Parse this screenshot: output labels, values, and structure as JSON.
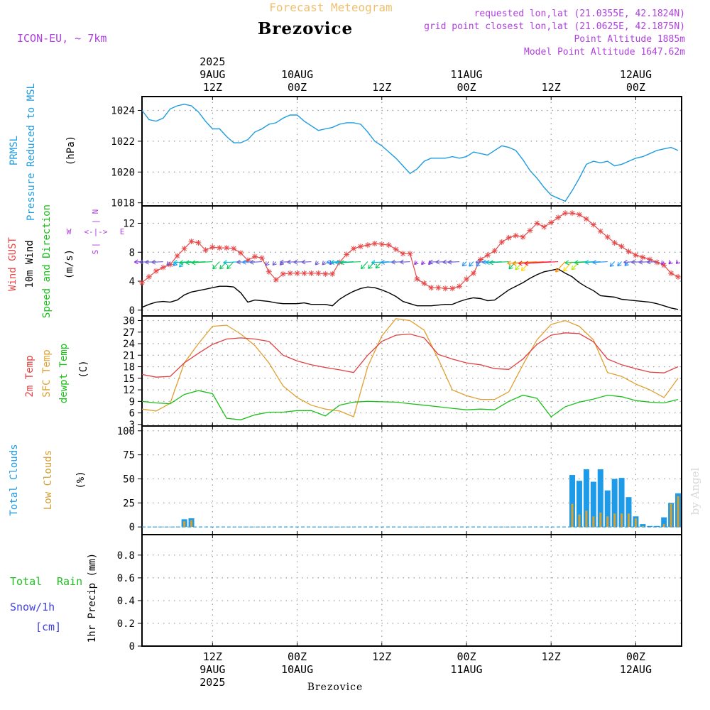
{
  "header": {
    "top_title": "Forecast Meteogram",
    "location": "Brezovice",
    "model": "ICON-EU, ~ 7km",
    "requested": "requested lon,lat (21.0355E, 42.1824N)",
    "grid_point": "grid point closest lon,lat (21.0625E, 42.1875N)",
    "point_altitude": "Point Altitude 1885m",
    "model_altitude": "Model Point Altitude 1647.62m",
    "footer_location": "Brezovice",
    "credit": "by Angel"
  },
  "time_axis": {
    "top": [
      {
        "lines": [
          "2025",
          "9AUG",
          "12Z"
        ]
      },
      {
        "lines": [
          "10AUG",
          "00Z"
        ]
      },
      {
        "lines": [
          "12Z"
        ]
      },
      {
        "lines": [
          "11AUG",
          "00Z"
        ]
      },
      {
        "lines": [
          "12Z"
        ]
      },
      {
        "lines": [
          "12AUG",
          "00Z"
        ]
      }
    ],
    "bottom": [
      {
        "lines": [
          "12Z",
          "9AUG",
          "2025"
        ]
      },
      {
        "lines": [
          "00Z",
          "10AUG"
        ]
      },
      {
        "lines": [
          "12Z"
        ]
      },
      {
        "lines": [
          "00Z",
          "11AUG"
        ]
      },
      {
        "lines": [
          "12Z"
        ]
      },
      {
        "lines": [
          "00Z",
          "12AUG"
        ]
      }
    ],
    "tick_hours": [
      12,
      24,
      36,
      48,
      60,
      72
    ],
    "start_hour": 2,
    "end_hour": 78.5
  },
  "panel_labels": {
    "pressure": [
      "PRMSL",
      "Pressure Reduced to MSL",
      "(hPa)"
    ],
    "wind": [
      "Wind GUST",
      "10m Wind",
      "Speed and Direction",
      "(m/s)"
    ],
    "compass": {
      "n": "N",
      "s": "S",
      "w": "W",
      "e": "E",
      "h": "<-|->",
      "v": "|"
    },
    "temp": [
      "2m Temp",
      "SFC Temp",
      "dewpt Temp",
      "(C)"
    ],
    "clouds": [
      "Total Clouds",
      "Low Clouds",
      "(%)"
    ],
    "precip": [
      "Total",
      "Rain",
      "Snow/1h",
      "[cm]",
      "1hr Precip (mm)"
    ]
  },
  "colors": {
    "pressure": "#1e9be0",
    "gust": "#e84848",
    "wind": "#000000",
    "t2m": "#e04040",
    "sfc": "#e0a030",
    "dewpt": "#18c018",
    "total_clouds": "#1e9be8",
    "low_clouds": "#d4a030",
    "header_purple": "#b040e0",
    "title_orange": "#f0c070",
    "rain_green": "#20c020",
    "snow_blue": "#4040e0"
  },
  "chart_data": [
    {
      "type": "line",
      "title": "PRMSL",
      "ylabel": "(hPa)",
      "yticks": [
        1018,
        1020,
        1022,
        1024
      ],
      "ylim": [
        1017.8,
        1024.9
      ],
      "series": [
        {
          "name": "PRMSL",
          "x": [
            2,
            3,
            4,
            5,
            6,
            7,
            8,
            9,
            10,
            11,
            12,
            13,
            14,
            15,
            16,
            17,
            18,
            19,
            20,
            21,
            22,
            23,
            24,
            25,
            26,
            27,
            28,
            29,
            30,
            31,
            32,
            33,
            34,
            35,
            36,
            37,
            38,
            39,
            40,
            41,
            42,
            43,
            44,
            45,
            46,
            47,
            48,
            49,
            50,
            51,
            52,
            53,
            54,
            55,
            56,
            57,
            58,
            59,
            60,
            61,
            62,
            63,
            64,
            65,
            66,
            67,
            68,
            69,
            70,
            71,
            72,
            73,
            74,
            75,
            76,
            77,
            78
          ],
          "values": [
            1024.0,
            1023.4,
            1023.3,
            1023.5,
            1024.1,
            1024.3,
            1024.4,
            1024.3,
            1023.9,
            1023.3,
            1022.8,
            1022.8,
            1022.3,
            1021.9,
            1021.9,
            1022.1,
            1022.6,
            1022.8,
            1023.1,
            1023.2,
            1023.5,
            1023.7,
            1023.7,
            1023.3,
            1023.0,
            1022.7,
            1022.8,
            1022.9,
            1023.1,
            1023.2,
            1023.2,
            1023.1,
            1022.6,
            1022.0,
            1021.7,
            1021.3,
            1020.9,
            1020.4,
            1019.9,
            1020.2,
            1020.7,
            1020.9,
            1020.9,
            1020.9,
            1021.0,
            1020.9,
            1021.0,
            1021.3,
            1021.2,
            1021.1,
            1021.4,
            1021.7,
            1021.6,
            1021.4,
            1020.8,
            1020.1,
            1019.6,
            1019.0,
            1018.5,
            1018.3,
            1018.1,
            1018.8,
            1019.6,
            1020.5,
            1020.7,
            1020.6,
            1020.7,
            1020.4,
            1020.5,
            1020.7,
            1020.9,
            1021.0,
            1021.2,
            1021.4,
            1021.5,
            1021.6,
            1021.4
          ]
        }
      ]
    },
    {
      "type": "line",
      "title": "Wind",
      "ylabel": "(m/s)",
      "yticks": [
        0,
        4,
        8,
        12
      ],
      "ylim": [
        -0.8,
        14.4
      ],
      "series": [
        {
          "name": "Wind GUST",
          "x": [
            2,
            3,
            4,
            5,
            6,
            7,
            8,
            9,
            10,
            11,
            12,
            13,
            14,
            15,
            16,
            17,
            18,
            19,
            20,
            21,
            22,
            23,
            24,
            25,
            26,
            27,
            28,
            29,
            30,
            31,
            32,
            33,
            34,
            35,
            36,
            37,
            38,
            39,
            40,
            41,
            42,
            43,
            44,
            45,
            46,
            47,
            48,
            49,
            50,
            51,
            52,
            53,
            54,
            55,
            56,
            57,
            58,
            59,
            60,
            61,
            62,
            63,
            64,
            65,
            66,
            67,
            68,
            69,
            70,
            71,
            72,
            73,
            74,
            75,
            76,
            77,
            78
          ],
          "values": [
            3.8,
            4.6,
            5.4,
            5.9,
            6.3,
            7.5,
            8.5,
            9.5,
            9.3,
            8.3,
            8.7,
            8.6,
            8.6,
            8.5,
            7.9,
            6.9,
            7.4,
            7.2,
            5.3,
            4.2,
            5.0,
            5.1,
            5.1,
            5.1,
            5.1,
            5.1,
            5.0,
            5.0,
            6.6,
            7.7,
            8.5,
            8.8,
            9.0,
            9.2,
            9.1,
            9.0,
            8.4,
            7.8,
            7.8,
            4.3,
            3.7,
            3.1,
            3.1,
            3.0,
            3.0,
            3.3,
            4.3,
            5.1,
            7.0,
            7.6,
            8.2,
            9.4,
            10.0,
            10.3,
            10.1,
            11.0,
            12.0,
            11.5,
            12.1,
            12.8,
            13.4,
            13.4,
            13.2,
            12.6,
            11.8,
            10.9,
            10.1,
            9.3,
            8.8,
            8.1,
            7.6,
            7.3,
            7.0,
            6.6,
            6.2,
            5.1,
            4.6
          ]
        },
        {
          "name": "10m Wind",
          "x": [
            2,
            3,
            4,
            5,
            6,
            7,
            8,
            9,
            10,
            11,
            12,
            13,
            14,
            15,
            16,
            17,
            18,
            19,
            20,
            21,
            22,
            23,
            24,
            25,
            26,
            27,
            28,
            29,
            30,
            31,
            32,
            33,
            34,
            35,
            36,
            37,
            38,
            39,
            40,
            41,
            42,
            43,
            44,
            45,
            46,
            47,
            48,
            49,
            50,
            51,
            52,
            53,
            54,
            55,
            56,
            57,
            58,
            59,
            60,
            61,
            62,
            63,
            64,
            65,
            66,
            67,
            68,
            69,
            70,
            71,
            72,
            73,
            74,
            75,
            76,
            77,
            78
          ],
          "values": [
            0.4,
            0.8,
            1.1,
            1.2,
            1.1,
            1.4,
            2.1,
            2.5,
            2.7,
            2.9,
            3.1,
            3.3,
            3.3,
            3.2,
            2.4,
            1.1,
            1.4,
            1.3,
            1.2,
            1.0,
            0.9,
            0.9,
            0.9,
            1.0,
            0.8,
            0.8,
            0.8,
            0.6,
            1.5,
            2.1,
            2.6,
            3.0,
            3.2,
            3.1,
            2.8,
            2.4,
            1.9,
            1.2,
            0.9,
            0.6,
            0.6,
            0.6,
            0.7,
            0.8,
            0.8,
            1.2,
            1.5,
            1.7,
            1.6,
            1.3,
            1.4,
            2.1,
            2.8,
            3.3,
            3.8,
            4.4,
            4.9,
            5.3,
            5.5,
            5.7,
            5.1,
            4.6,
            3.8,
            3.2,
            2.7,
            2.0,
            1.9,
            1.8,
            1.5,
            1.4,
            1.3,
            1.2,
            1.1,
            0.9,
            0.6,
            0.3,
            0.1
          ]
        }
      ]
    },
    {
      "type": "line",
      "title": "Temperature",
      "ylabel": "(C)",
      "yticks": [
        3,
        6,
        9,
        12,
        15,
        18,
        21,
        24,
        27,
        30
      ],
      "ylim": [
        2.6,
        31.2
      ],
      "series": [
        {
          "name": "2m Temp",
          "x": [
            2,
            4,
            6,
            8,
            10,
            12,
            14,
            16,
            18,
            20,
            22,
            24,
            26,
            28,
            30,
            32,
            34,
            36,
            38,
            40,
            42,
            44,
            46,
            48,
            50,
            52,
            54,
            56,
            58,
            60,
            62,
            64,
            66,
            68,
            70,
            72,
            74,
            76,
            78
          ],
          "values": [
            16,
            15.3,
            15.5,
            19,
            21.5,
            23.8,
            25.2,
            25.5,
            25.2,
            24.6,
            21,
            19.5,
            18.5,
            17.8,
            17.2,
            16.5,
            21,
            24.6,
            26.2,
            26.5,
            25.5,
            21.2,
            20,
            19,
            18.5,
            17.5,
            17.3,
            20,
            23.8,
            26.2,
            26.8,
            26.6,
            24.5,
            20,
            18.5,
            17.5,
            16.6,
            16.4,
            18
          ]
        },
        {
          "name": "SFC Temp",
          "x": [
            2,
            4,
            6,
            8,
            10,
            12,
            14,
            16,
            18,
            20,
            22,
            24,
            26,
            28,
            30,
            32,
            34,
            36,
            38,
            40,
            42,
            44,
            46,
            48,
            50,
            52,
            54,
            56,
            58,
            60,
            62,
            64,
            66,
            68,
            70,
            72,
            74,
            76,
            78
          ],
          "values": [
            7,
            6.5,
            8.5,
            19,
            24,
            28.5,
            28.8,
            26.5,
            23.5,
            19,
            13,
            10,
            8,
            7,
            6.5,
            5,
            18,
            26,
            30.5,
            30,
            27.5,
            20,
            12,
            10.5,
            9.5,
            9.5,
            11.5,
            18.5,
            25,
            29,
            30,
            28.5,
            25,
            16.5,
            15.5,
            13.5,
            12,
            10,
            15
          ]
        },
        {
          "name": "dewpt Temp",
          "x": [
            2,
            4,
            6,
            8,
            10,
            12,
            14,
            16,
            18,
            20,
            22,
            24,
            26,
            28,
            30,
            32,
            34,
            36,
            38,
            40,
            42,
            44,
            46,
            48,
            50,
            52,
            54,
            56,
            58,
            60,
            62,
            64,
            66,
            68,
            70,
            72,
            74,
            76,
            78
          ],
          "values": [
            9,
            8.6,
            8.4,
            10.8,
            11.8,
            11,
            4.6,
            4.2,
            5.5,
            6.2,
            6.2,
            6.6,
            6.6,
            5.2,
            8,
            8.8,
            9,
            8.9,
            8.8,
            8.4,
            8,
            7.6,
            7.2,
            6.8,
            7,
            6.8,
            9,
            10.6,
            9.8,
            5,
            7.6,
            8.8,
            9.6,
            10.6,
            10.2,
            9.2,
            8.8,
            8.6,
            9.5
          ]
        }
      ]
    },
    {
      "type": "bar",
      "title": "Clouds",
      "ylabel": "(%)",
      "yticks": [
        0,
        25,
        50,
        75,
        100
      ],
      "ylim": [
        -8,
        105
      ],
      "series": [
        {
          "name": "Total Clouds",
          "x": [
            8,
            9,
            63,
            64,
            65,
            66,
            67,
            68,
            69,
            70,
            71,
            72,
            73,
            74,
            75,
            76,
            77,
            78,
            79
          ],
          "values": [
            8,
            9,
            54,
            48,
            60,
            47,
            60,
            38,
            50,
            51,
            31,
            11,
            3,
            1,
            1,
            10,
            25,
            35,
            38
          ]
        },
        {
          "name": "Low Clouds",
          "x": [
            8,
            9,
            63,
            64,
            65,
            66,
            67,
            68,
            69,
            70,
            71,
            72,
            73,
            74,
            75,
            76,
            77,
            78,
            79
          ],
          "values": [
            6,
            7,
            24,
            13,
            17,
            11,
            15,
            11,
            14,
            14,
            14,
            9,
            1,
            0,
            0,
            3,
            24,
            32,
            36
          ]
        }
      ]
    },
    {
      "type": "bar",
      "title": "1hr Precip",
      "ylabel": "1hr Precip (mm)",
      "yticks": [
        0,
        0.2,
        0.4,
        0.6,
        0.8
      ],
      "ylim": [
        0,
        0.98
      ],
      "series": [
        {
          "name": "Total Rain",
          "x": [],
          "values": []
        }
      ]
    }
  ]
}
